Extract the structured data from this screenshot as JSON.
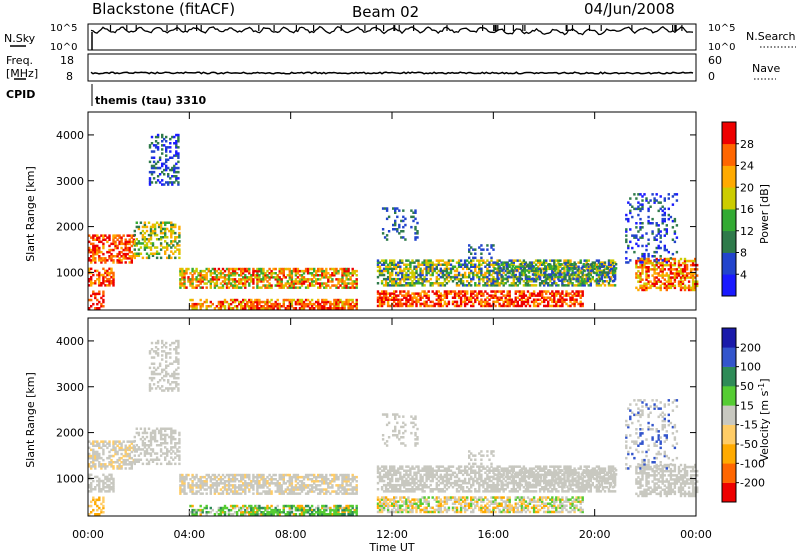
{
  "header": {
    "station": "Blackstone (fitACF)",
    "beam": "Beam 02",
    "date": "04/Jun/2008"
  },
  "top_panels": {
    "nsky_label": "N.Sky",
    "nsky_ticks": [
      "10^5",
      "10^0"
    ],
    "nsearch_label": "N.Search",
    "nsearch_ticks": [
      "10^5",
      "10^0"
    ],
    "freq_label": "Freq.",
    "freq_unit": "[MHz]",
    "freq_ticks": [
      "18",
      "8"
    ],
    "nave_label": "Nave",
    "nave_ticks": [
      "60",
      "0"
    ],
    "cpid_label": "CPID",
    "cpid_value": "themis (tau) 3310"
  },
  "chart_data": [
    {
      "type": "heatmap",
      "name": "power",
      "ylabel": "Slant Range [km]",
      "yticks": [
        "1000",
        "2000",
        "3000",
        "4000"
      ],
      "ylim": [
        180,
        4500
      ],
      "xticks": [
        "00:00",
        "04:00",
        "08:00",
        "12:00",
        "16:00",
        "20:00",
        "00:00"
      ],
      "xlim_hours": [
        0,
        24
      ],
      "colorbar_label": "Power [dB]",
      "colorbar_ticks": [
        "4",
        "8",
        "12",
        "16",
        "20",
        "24",
        "28"
      ],
      "colorbar_colors": [
        "#1a1aff",
        "#2244cc",
        "#2e7a4a",
        "#33aa33",
        "#cccc00",
        "#ffaa00",
        "#ff6600",
        "#ee0000"
      ]
    },
    {
      "type": "heatmap",
      "name": "velocity",
      "ylabel": "Slant Range [km]",
      "yticks": [
        "1000",
        "2000",
        "3000",
        "4000"
      ],
      "ylim": [
        180,
        4500
      ],
      "xticks": [
        "00:00",
        "04:00",
        "08:00",
        "12:00",
        "16:00",
        "20:00",
        "00:00"
      ],
      "xlim_hours": [
        0,
        24
      ],
      "xlabel": "Time UT",
      "colorbar_label": "Velocity [m s",
      "colorbar_label_sup": "-1",
      "colorbar_label_end": "]",
      "colorbar_ticks": [
        "-200",
        "-100",
        "-50",
        "-15",
        "15",
        "50",
        "100",
        "200"
      ],
      "colorbar_colors": [
        "#ee0000",
        "#ff6600",
        "#ffaa00",
        "#ffcc66",
        "#c8c8c0",
        "#55cc33",
        "#2e8b57",
        "#3355cc",
        "#1a1aaa"
      ]
    }
  ]
}
